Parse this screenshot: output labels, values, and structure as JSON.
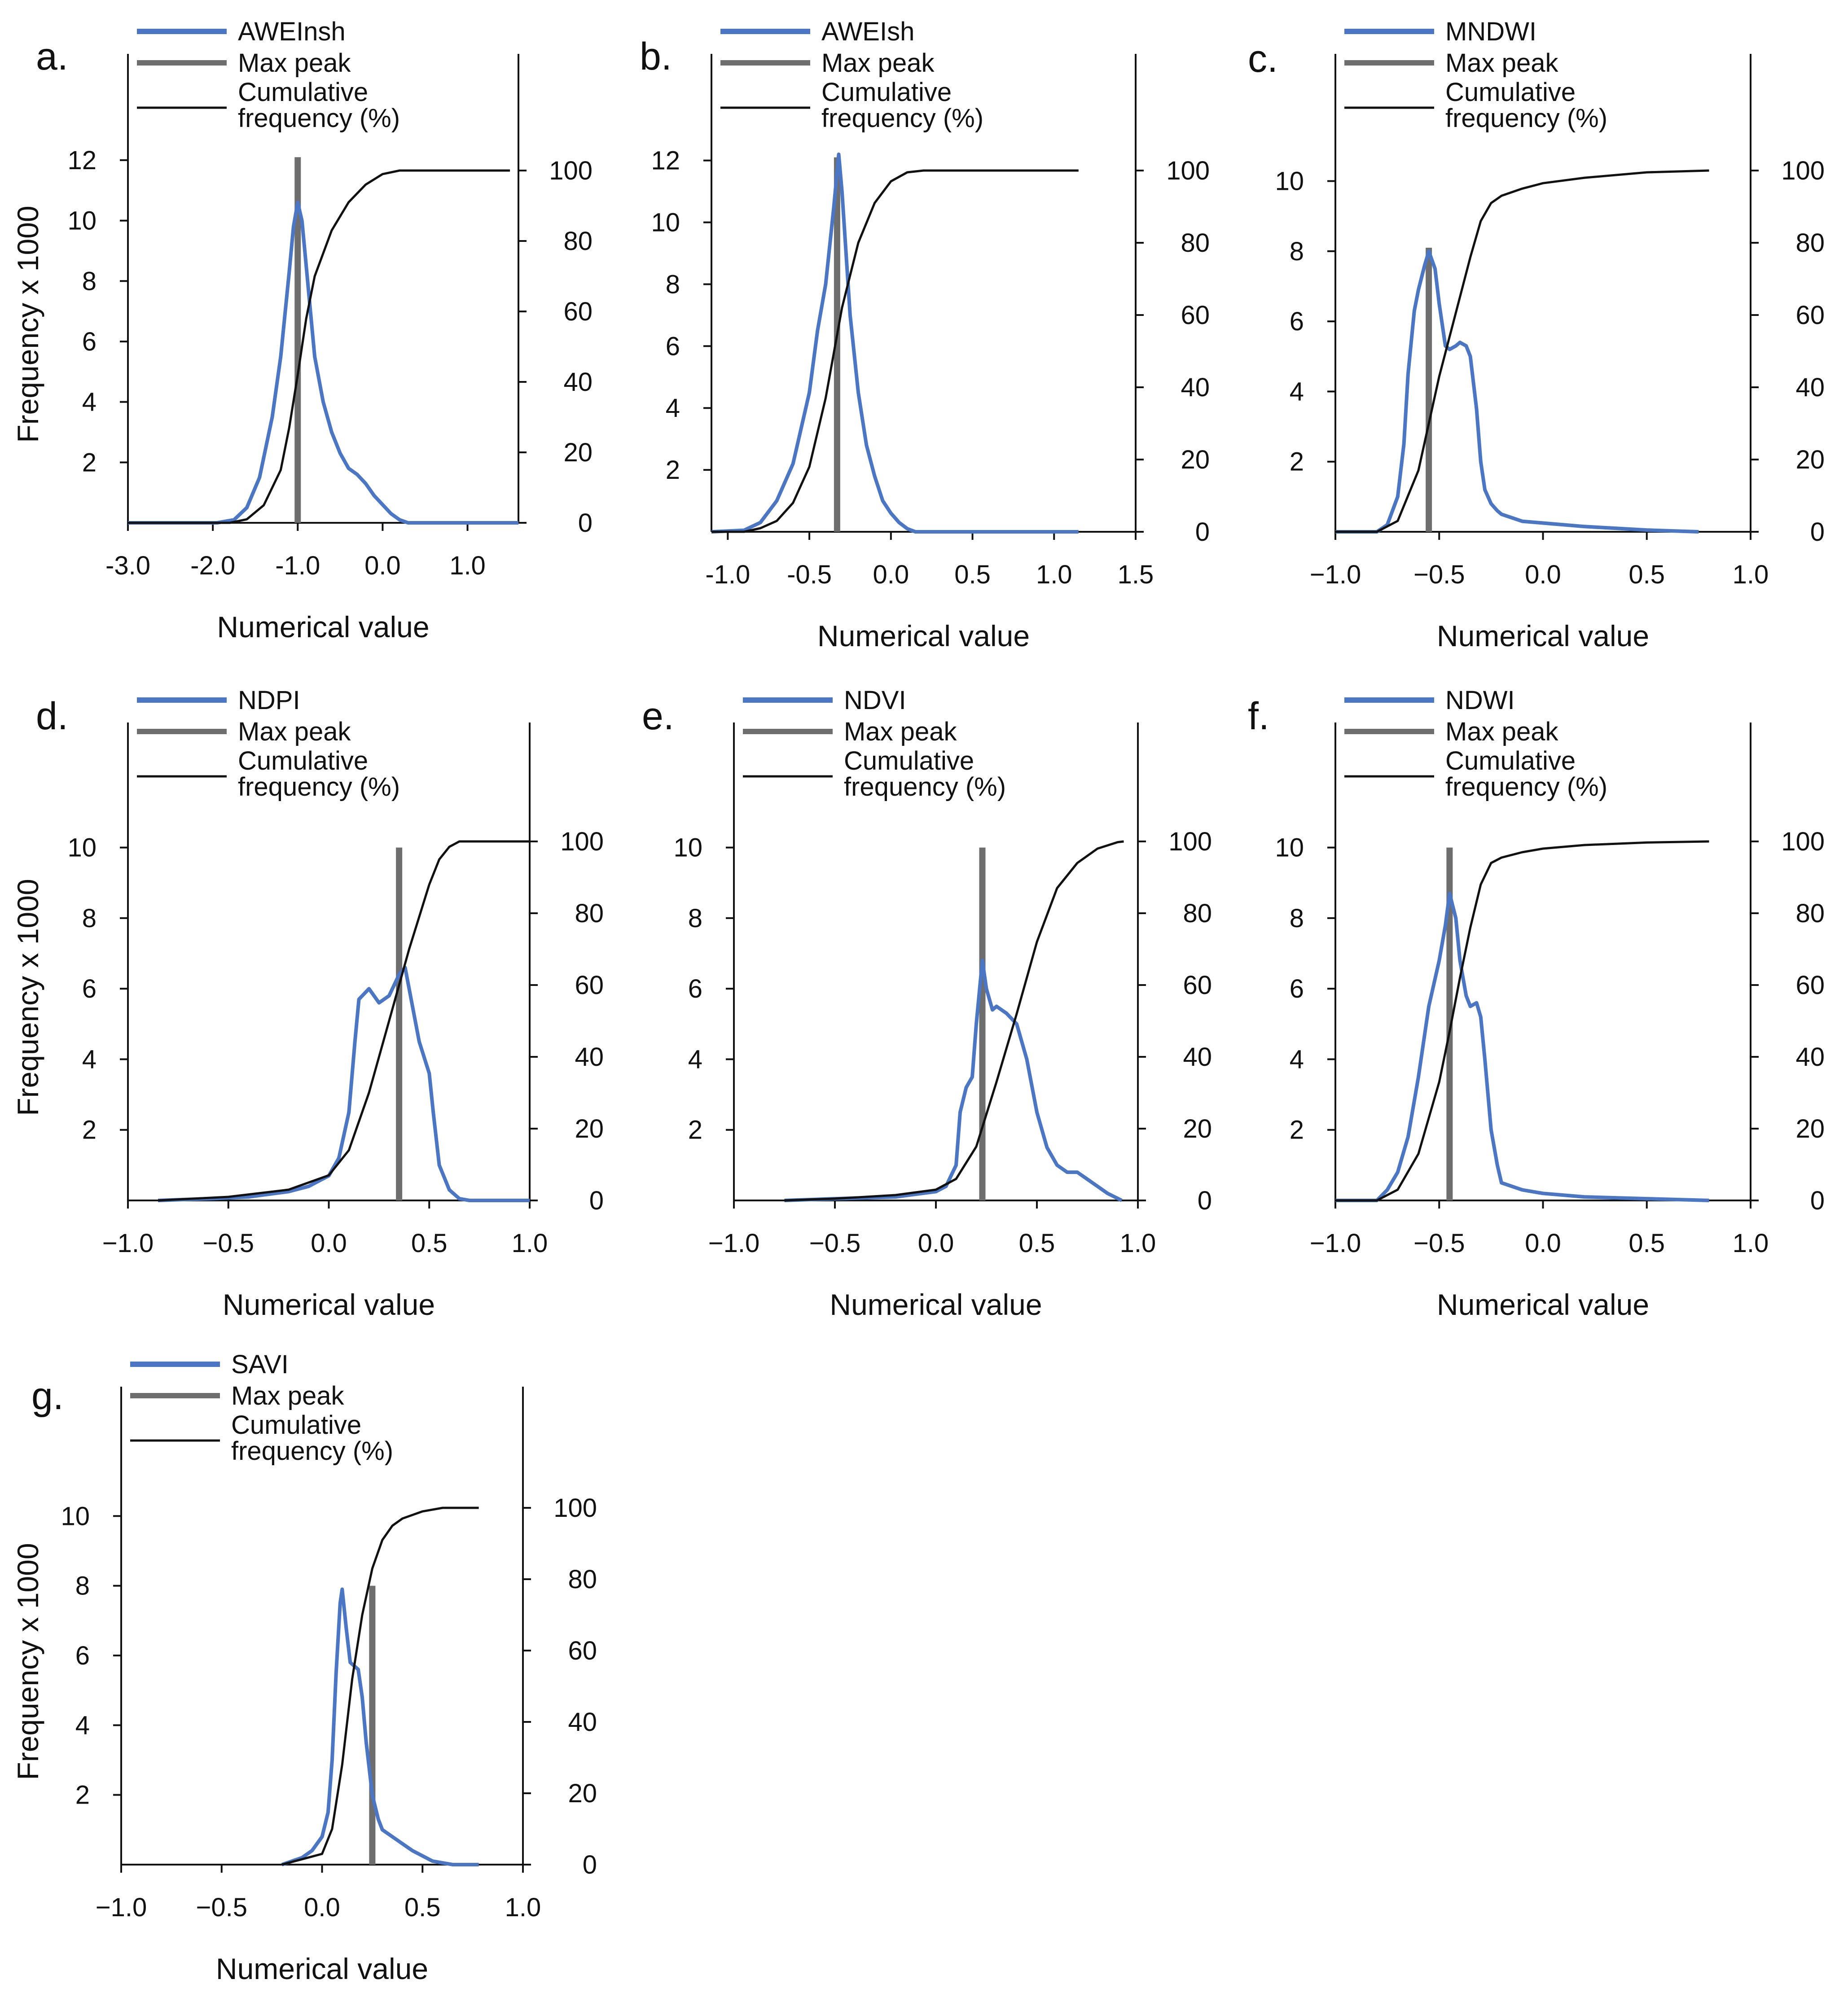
{
  "ylabel": "Frequency x 1000",
  "xlabel": "Numerical value",
  "legend": {
    "peak_label": "Max peak",
    "cumulative_label": "Cumulative\nfrequency (%)"
  },
  "colors": {
    "frequency": "#4a76c4",
    "peak": "#6e6e6e",
    "cumulative": "#111111"
  },
  "chart_data": [
    {
      "type": "line",
      "panel": "a.",
      "series_name": "AWEInsh",
      "xlim": [
        -3.0,
        1.6
      ],
      "xticks": [
        -3.0,
        -2.0,
        -1.0,
        0.0,
        1.0
      ],
      "xtick_labels": [
        "-3.0",
        "-2.0",
        "-1.0",
        "0.0",
        "1.0"
      ],
      "ylim": [
        0,
        12.4
      ],
      "yticks": [
        2,
        4,
        6,
        8,
        10,
        12
      ],
      "y2lim": [
        0,
        100
      ],
      "y2ticks": [
        0,
        20,
        40,
        60,
        80,
        100
      ],
      "peak_x": -1.0,
      "peak_top": 12.1,
      "frequency": {
        "x": [
          -3.0,
          -1.95,
          -1.75,
          -1.6,
          -1.45,
          -1.3,
          -1.2,
          -1.1,
          -1.05,
          -1.0,
          -0.95,
          -0.9,
          -0.85,
          -0.8,
          -0.7,
          -0.6,
          -0.5,
          -0.4,
          -0.3,
          -0.2,
          -0.1,
          0.0,
          0.1,
          0.2,
          0.3,
          1.6
        ],
        "y": [
          0,
          0,
          0.1,
          0.5,
          1.5,
          3.5,
          5.5,
          8.3,
          9.8,
          10.6,
          10.0,
          8.5,
          7.0,
          5.5,
          4.0,
          3.0,
          2.3,
          1.8,
          1.6,
          1.3,
          0.9,
          0.6,
          0.3,
          0.1,
          0,
          0
        ]
      },
      "cumulative": {
        "x": [
          -3.0,
          -1.8,
          -1.6,
          -1.4,
          -1.2,
          -1.1,
          -1.0,
          -0.9,
          -0.8,
          -0.6,
          -0.4,
          -0.2,
          0.0,
          0.2,
          0.4,
          1.5
        ],
        "y": [
          0,
          0,
          1,
          5,
          15,
          27,
          42,
          58,
          70,
          83,
          91,
          96,
          99,
          100,
          100,
          100
        ]
      }
    },
    {
      "type": "line",
      "panel": "b.",
      "series_name": "AWEIsh",
      "xlim": [
        -1.1,
        1.5
      ],
      "xticks": [
        -1.0,
        -0.5,
        0.0,
        0.5,
        1.0,
        1.5
      ],
      "xtick_labels": [
        "-1.0",
        "-0.5",
        "0.0",
        "0.5",
        "1.0",
        "1.5"
      ],
      "ylim": [
        0,
        12.4
      ],
      "yticks": [
        2,
        4,
        6,
        8,
        10,
        12
      ],
      "y2lim": [
        0,
        100
      ],
      "y2ticks": [
        0,
        20,
        40,
        60,
        80,
        100
      ],
      "peak_x": -0.33,
      "peak_top": 12.1,
      "frequency": {
        "x": [
          -1.1,
          -0.9,
          -0.8,
          -0.7,
          -0.6,
          -0.5,
          -0.45,
          -0.4,
          -0.35,
          -0.32,
          -0.3,
          -0.25,
          -0.2,
          -0.15,
          -0.1,
          -0.05,
          0.0,
          0.05,
          0.1,
          0.15,
          1.15
        ],
        "y": [
          0,
          0.05,
          0.3,
          1.0,
          2.2,
          4.5,
          6.5,
          8.0,
          10.5,
          12.2,
          11.0,
          7.0,
          4.5,
          2.8,
          1.8,
          1.0,
          0.6,
          0.3,
          0.1,
          0,
          0
        ]
      },
      "cumulative": {
        "x": [
          -1.1,
          -0.9,
          -0.8,
          -0.7,
          -0.6,
          -0.5,
          -0.4,
          -0.3,
          -0.2,
          -0.1,
          0.0,
          0.1,
          0.2,
          1.15
        ],
        "y": [
          0,
          0,
          1,
          3,
          8,
          18,
          37,
          62,
          80,
          91,
          97,
          99.5,
          100,
          100
        ]
      }
    },
    {
      "type": "line",
      "panel": "c.",
      "series_name": "MNDWI",
      "xlim": [
        -1.0,
        1.0
      ],
      "xticks": [
        -1.0,
        -0.5,
        0.0,
        0.5,
        1.0
      ],
      "xtick_labels": [
        "−1.0",
        "−0.5",
        "0.0",
        "0.5",
        "1.0"
      ],
      "ylim": [
        0,
        10.3
      ],
      "yticks": [
        2,
        4,
        6,
        8,
        10
      ],
      "y2lim": [
        0,
        100
      ],
      "y2ticks": [
        0,
        20,
        40,
        60,
        80,
        100
      ],
      "peak_x": -0.55,
      "peak_top": 8.1,
      "frequency": {
        "x": [
          -1.0,
          -0.8,
          -0.75,
          -0.7,
          -0.67,
          -0.65,
          -0.62,
          -0.6,
          -0.57,
          -0.55,
          -0.52,
          -0.5,
          -0.47,
          -0.45,
          -0.42,
          -0.4,
          -0.37,
          -0.35,
          -0.32,
          -0.3,
          -0.28,
          -0.25,
          -0.22,
          -0.2,
          -0.1,
          0.0,
          0.2,
          0.5,
          0.75
        ],
        "y": [
          0,
          0,
          0.2,
          1.0,
          2.5,
          4.5,
          6.3,
          6.9,
          7.6,
          8.0,
          7.5,
          6.5,
          5.3,
          5.2,
          5.3,
          5.4,
          5.3,
          5.0,
          3.5,
          2.0,
          1.2,
          0.8,
          0.6,
          0.5,
          0.3,
          0.25,
          0.15,
          0.05,
          0
        ]
      },
      "cumulative": {
        "x": [
          -1.0,
          -0.8,
          -0.7,
          -0.6,
          -0.5,
          -0.4,
          -0.35,
          -0.3,
          -0.25,
          -0.2,
          -0.1,
          0.0,
          0.2,
          0.5,
          0.8
        ],
        "y": [
          0,
          0,
          3,
          17,
          43,
          65,
          76,
          86,
          91,
          93,
          95,
          96.5,
          98,
          99.5,
          100
        ]
      }
    },
    {
      "type": "line",
      "panel": "d.",
      "series_name": "NDPI",
      "xlim": [
        -1.0,
        1.0
      ],
      "xticks": [
        -1.0,
        -0.5,
        0.0,
        0.5,
        1.0
      ],
      "xtick_labels": [
        "−1.0",
        "−0.5",
        "0.0",
        "0.5",
        "1.0"
      ],
      "ylim": [
        0,
        10.3
      ],
      "yticks": [
        2,
        4,
        6,
        8,
        10
      ],
      "y2lim": [
        0,
        100
      ],
      "y2ticks": [
        0,
        20,
        40,
        60,
        80,
        100
      ],
      "peak_x": 0.35,
      "peak_top": 10.0,
      "frequency": {
        "x": [
          -0.85,
          -0.6,
          -0.4,
          -0.2,
          -0.1,
          0.0,
          0.05,
          0.1,
          0.13,
          0.15,
          0.2,
          0.25,
          0.3,
          0.35,
          0.38,
          0.4,
          0.45,
          0.5,
          0.52,
          0.55,
          0.6,
          0.65,
          0.7,
          1.0
        ],
        "y": [
          0,
          0.05,
          0.1,
          0.25,
          0.4,
          0.7,
          1.2,
          2.5,
          4.5,
          5.7,
          6.0,
          5.6,
          5.8,
          6.4,
          6.6,
          6.0,
          4.5,
          3.6,
          2.5,
          1.0,
          0.3,
          0.05,
          0,
          0
        ]
      },
      "cumulative": {
        "x": [
          -0.85,
          -0.5,
          -0.2,
          0.0,
          0.1,
          0.2,
          0.3,
          0.4,
          0.5,
          0.55,
          0.6,
          0.65,
          0.7,
          1.0
        ],
        "y": [
          0,
          1,
          3,
          7,
          14,
          30,
          50,
          70,
          88,
          95,
          98.5,
          100,
          100,
          100
        ]
      }
    },
    {
      "type": "line",
      "panel": "e.",
      "series_name": "NDVI",
      "xlim": [
        -1.0,
        1.0
      ],
      "xticks": [
        -1.0,
        -0.5,
        0.0,
        0.5,
        1.0
      ],
      "xtick_labels": [
        "−1.0",
        "−0.5",
        "0.0",
        "0.5",
        "1.0"
      ],
      "ylim": [
        0,
        10.3
      ],
      "yticks": [
        2,
        4,
        6,
        8,
        10
      ],
      "y2lim": [
        0,
        100
      ],
      "y2ticks": [
        0,
        20,
        40,
        60,
        80,
        100
      ],
      "peak_x": 0.23,
      "peak_top": 10.0,
      "frequency": {
        "x": [
          -0.75,
          -0.5,
          -0.2,
          0.0,
          0.05,
          0.1,
          0.12,
          0.15,
          0.18,
          0.2,
          0.23,
          0.25,
          0.28,
          0.3,
          0.35,
          0.4,
          0.45,
          0.5,
          0.55,
          0.6,
          0.65,
          0.7,
          0.75,
          0.8,
          0.85,
          0.92
        ],
        "y": [
          0,
          0.05,
          0.1,
          0.25,
          0.4,
          1.0,
          2.5,
          3.2,
          3.5,
          5.0,
          6.8,
          6.0,
          5.4,
          5.5,
          5.3,
          5.0,
          4.0,
          2.5,
          1.5,
          1.0,
          0.8,
          0.8,
          0.6,
          0.4,
          0.2,
          0
        ]
      },
      "cumulative": {
        "x": [
          -0.75,
          -0.5,
          -0.2,
          0.0,
          0.1,
          0.2,
          0.3,
          0.4,
          0.5,
          0.6,
          0.7,
          0.8,
          0.9,
          0.93
        ],
        "y": [
          0,
          0.5,
          1.5,
          3,
          6,
          15,
          33,
          52,
          72,
          87,
          94,
          98,
          99.8,
          100
        ]
      }
    },
    {
      "type": "line",
      "panel": "f.",
      "series_name": "NDWI",
      "xlim": [
        -1.0,
        1.0
      ],
      "xticks": [
        -1.0,
        -0.5,
        0.0,
        0.5,
        1.0
      ],
      "xtick_labels": [
        "−1.0",
        "−0.5",
        "0.0",
        "0.5",
        "1.0"
      ],
      "ylim": [
        0,
        10.3
      ],
      "yticks": [
        2,
        4,
        6,
        8,
        10
      ],
      "y2lim": [
        0,
        100
      ],
      "y2ticks": [
        0,
        20,
        40,
        60,
        80,
        100
      ],
      "peak_x": -0.45,
      "peak_top": 10.0,
      "frequency": {
        "x": [
          -1.0,
          -0.8,
          -0.75,
          -0.7,
          -0.65,
          -0.6,
          -0.55,
          -0.5,
          -0.47,
          -0.45,
          -0.42,
          -0.4,
          -0.37,
          -0.35,
          -0.32,
          -0.3,
          -0.28,
          -0.25,
          -0.22,
          -0.2,
          -0.1,
          0.0,
          0.2,
          0.5,
          0.8
        ],
        "y": [
          0,
          0,
          0.3,
          0.8,
          1.8,
          3.5,
          5.5,
          6.8,
          7.8,
          8.7,
          8.0,
          6.8,
          5.8,
          5.5,
          5.6,
          5.2,
          4.0,
          2.0,
          1.0,
          0.5,
          0.3,
          0.2,
          0.1,
          0.05,
          0
        ]
      },
      "cumulative": {
        "x": [
          -1.0,
          -0.8,
          -0.7,
          -0.6,
          -0.5,
          -0.45,
          -0.4,
          -0.35,
          -0.3,
          -0.25,
          -0.2,
          -0.1,
          0.0,
          0.2,
          0.5,
          0.8
        ],
        "y": [
          0,
          0,
          3,
          13,
          33,
          47,
          62,
          76,
          88,
          94,
          95.5,
          97,
          98,
          99,
          99.7,
          100
        ]
      }
    },
    {
      "type": "line",
      "panel": "g.",
      "series_name": "SAVI",
      "xlim": [
        -1.0,
        1.0
      ],
      "xticks": [
        -1.0,
        -0.5,
        0.0,
        0.5,
        1.0
      ],
      "xtick_labels": [
        "−1.0",
        "−0.5",
        "0.0",
        "0.5",
        "1.0"
      ],
      "ylim": [
        0,
        10.3
      ],
      "yticks": [
        2,
        4,
        6,
        8,
        10
      ],
      "y2lim": [
        0,
        100
      ],
      "y2ticks": [
        0,
        20,
        40,
        60,
        80,
        100
      ],
      "peak_x": 0.25,
      "peak_top": 8.0,
      "frequency": {
        "x": [
          -0.2,
          -0.1,
          -0.05,
          0.0,
          0.03,
          0.05,
          0.07,
          0.09,
          0.1,
          0.12,
          0.14,
          0.16,
          0.18,
          0.2,
          0.22,
          0.25,
          0.28,
          0.3,
          0.35,
          0.4,
          0.45,
          0.5,
          0.55,
          0.6,
          0.65,
          0.78
        ],
        "y": [
          0,
          0.2,
          0.4,
          0.8,
          1.5,
          3.0,
          5.5,
          7.5,
          7.9,
          6.8,
          5.8,
          5.7,
          5.6,
          4.8,
          3.5,
          2.0,
          1.3,
          1.0,
          0.8,
          0.6,
          0.4,
          0.25,
          0.1,
          0.05,
          0,
          0
        ]
      },
      "cumulative": {
        "x": [
          -0.2,
          0.0,
          0.05,
          0.1,
          0.15,
          0.2,
          0.25,
          0.3,
          0.35,
          0.4,
          0.5,
          0.6,
          0.78
        ],
        "y": [
          0,
          3,
          10,
          28,
          52,
          70,
          83,
          91,
          95,
          97,
          99,
          100,
          100
        ]
      }
    }
  ]
}
